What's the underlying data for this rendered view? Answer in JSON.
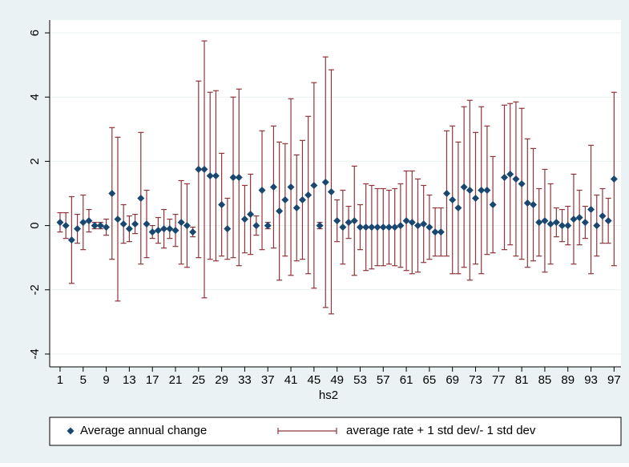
{
  "chart_data": {
    "type": "errorbar",
    "x_label": "hs2",
    "x": [
      1,
      2,
      3,
      4,
      5,
      6,
      7,
      8,
      9,
      10,
      11,
      12,
      13,
      14,
      15,
      16,
      17,
      18,
      19,
      20,
      21,
      22,
      23,
      24,
      25,
      26,
      27,
      28,
      29,
      30,
      31,
      32,
      33,
      34,
      35,
      36,
      37,
      38,
      39,
      40,
      41,
      42,
      43,
      44,
      45,
      46,
      47,
      48,
      49,
      50,
      51,
      52,
      53,
      54,
      55,
      56,
      57,
      58,
      59,
      60,
      61,
      62,
      63,
      64,
      65,
      66,
      67,
      68,
      69,
      70,
      71,
      72,
      73,
      74,
      75,
      76,
      77,
      78,
      79,
      80,
      81,
      82,
      83,
      84,
      85,
      86,
      87,
      88,
      89,
      90,
      91,
      92,
      93,
      94,
      95,
      96,
      97
    ],
    "series": [
      {
        "name": "Average annual change",
        "color": "#1a476f",
        "error_name": "average rate + 1 std dev/- 1 std dev",
        "error_color": "#90353b",
        "values": [
          0.1,
          0.0,
          -0.45,
          -0.1,
          0.1,
          0.15,
          0.0,
          0.0,
          -0.05,
          1.0,
          0.2,
          0.05,
          -0.1,
          0.05,
          0.85,
          0.05,
          -0.2,
          -0.15,
          -0.1,
          -0.1,
          -0.15,
          0.1,
          0.0,
          -0.2,
          1.75,
          1.75,
          1.55,
          1.55,
          0.65,
          -0.1,
          1.5,
          1.5,
          0.2,
          0.35,
          0.0,
          1.1,
          0.0,
          1.2,
          0.45,
          0.8,
          1.2,
          0.55,
          0.8,
          0.95,
          1.25,
          0.0,
          1.35,
          1.05,
          0.15,
          -0.05,
          0.1,
          0.15,
          -0.05,
          -0.05,
          -0.05,
          -0.05,
          -0.05,
          -0.05,
          -0.05,
          0.0,
          0.15,
          0.1,
          0.0,
          0.05,
          -0.05,
          -0.2,
          -0.2,
          1.0,
          0.8,
          0.55,
          1.2,
          1.1,
          0.85,
          1.1,
          1.1,
          0.65,
          null,
          1.5,
          1.6,
          1.45,
          1.3,
          0.7,
          0.65,
          0.1,
          0.15,
          0.05,
          0.1,
          0.0,
          0.0,
          0.2,
          0.25,
          0.1,
          0.5,
          0.0,
          0.3,
          0.15,
          1.45
        ],
        "errors": [
          0.3,
          0.4,
          1.35,
          0.45,
          0.85,
          0.35,
          0.1,
          0.1,
          0.25,
          2.05,
          2.55,
          0.6,
          0.4,
          0.3,
          2.05,
          1.05,
          0.2,
          0.4,
          0.6,
          0.3,
          0.5,
          1.3,
          1.3,
          0.15,
          2.75,
          4.0,
          2.6,
          2.65,
          1.6,
          0.95,
          2.5,
          2.75,
          1.05,
          1.25,
          0.3,
          1.85,
          0.1,
          1.9,
          2.15,
          1.75,
          2.75,
          1.65,
          1.85,
          2.45,
          3.2,
          0.1,
          3.9,
          3.8,
          0.65,
          1.15,
          0.5,
          1.7,
          0.7,
          1.35,
          1.3,
          1.2,
          1.2,
          1.15,
          1.2,
          1.3,
          1.55,
          1.6,
          1.45,
          1.2,
          1.0,
          0.75,
          0.75,
          1.95,
          2.3,
          2.05,
          2.5,
          2.8,
          2.05,
          2.6,
          2.0,
          1.5,
          null,
          2.25,
          2.2,
          2.4,
          2.35,
          2.0,
          1.75,
          1.05,
          1.6,
          1.25,
          0.45,
          0.5,
          0.6,
          1.4,
          0.85,
          0.5,
          2.0,
          0.95,
          0.85,
          0.7,
          2.7
        ]
      }
    ],
    "xlim": [
      -0.8,
      98.2
    ],
    "ylim": [
      -4.4,
      6.4
    ],
    "xticks": [
      1,
      5,
      9,
      13,
      17,
      21,
      25,
      29,
      33,
      37,
      41,
      45,
      49,
      53,
      57,
      61,
      65,
      69,
      73,
      77,
      81,
      85,
      89,
      93,
      97
    ],
    "yticks": [
      -4,
      -2,
      0,
      2,
      4,
      6
    ],
    "grid": true,
    "legend": "bottom"
  }
}
